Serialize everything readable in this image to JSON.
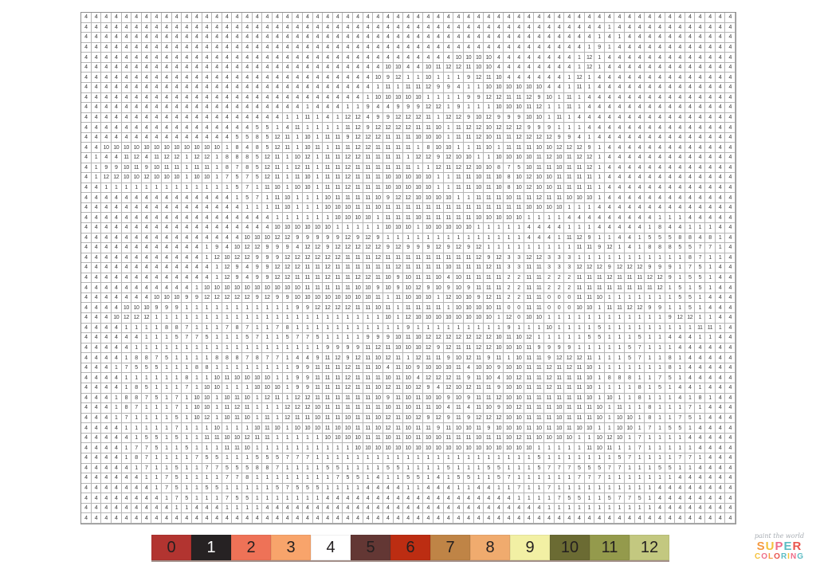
{
  "page": {
    "background": "#ffffff"
  },
  "grid": {
    "rows": 51,
    "cols": 65,
    "line_color": "#b6b6b6",
    "number_color": "#3c3c3c",
    "cell_values": [
      "4 4 4 4 4 4 4 4 4 4 4 4 4 4 4 4 4 4 4 4 4 4 4 4 4 4 4 4 4 4 4 4 4 4 4 4 4 4 4 4 4 4 4 4 4 4 4 4 4 4 4 4 4 4 4 4 4 4 4 4 4 4 4 4 4",
      "4 4 4 4 4 4 4 4 4 4 4 4 4 4 4 4 4 4 4 4 4 4 4 4 4 4 4 4 4 4 4 4 4 4 4 4 4 4 4 4 4 4 4 4 4 4 4 4 4 4 4 4 1 4 4 4 4 4 4 4 4 4 4 4 4",
      "4 4 4 4 4 4 4 4 4 4 4 4 4 4 4 4 4 4 4 4 4 4 4 4 4 4 4 4 4 4 4 4 4 4 4 4 4 4 4 4 4 4 4 4 4 4 4 4 4 4 4 1 4 1 4 4 4 4 4 4 4 4 4 4 4",
      "4 4 4 4 4 4 4 4 4 4 4 4 4 4 4 4 4 4 4 4 4 4 4 4 4 4 4 4 4 4 4 4 4 4 4 4 4 4 4 4 4 4 4 4 4 4 4 4 4 4 1 9 1 4 4 4 4 4 4 4 4 4 4 4 4",
      "4 4 4 4 4 4 4 4 4 4 4 4 4 4 4 4 4 4 4 4 4 4 4 4 4 4 4 4 4 4 4 4 4 4 4 4 4 10 10 10 10 4 4 4 4 4 4 4 4 1 12 1 4 4 4 4 4 4 4 4 4 4 4 4 4",
      "4 4 4 4 4 4 4 4 4 4 4 4 4 4 4 4 4 4 4 4 4 4 4 4 4 4 4 4 4 4 10 10 4 4 10 11 12 12 11 10 10 4 4 4 4 4 4 4 4 1 12 1 4 4 4 4 4 4 4 4 4 4 4 4 4",
      "4 4 4 4 4 4 4 4 4 4 4 4 4 4 4 4 4 4 4 4 4 4 4 4 4 4 4 4 4 10 9 12 1 1 10 1 1 1 9 12 11 10 4 4 4 4 4 4 1 12 1 4 4 4 4 4 4 4 4 4 4 4 4 4 4",
      "4 4 4 4 4 4 4 4 4 4 4 4 4 4 4 4 4 4 4 4 4 4 4 4 4 4 4 4 4 1 11 1 11 11 12 9 9 4 1 1 10 10 10 10 10 10 4 4 1 11 1 4 4 4 4 4 4 4 4 4 4 4 4 4 4",
      "4 4 4 4 4 4 4 4 4 4 4 4 4 4 4 4 4 4 4 4 4 4 4 4 4 4 4 4 1 10 10 10 10 10 1 1 1 1 9 9 12 12 11 11 12 9 10 1 11 1 4 4 4 4 4 4 4 4 4 4 4 4 4 4 4",
      "4 4 4 4 4 4 4 4 4 4 4 4 4 4 4 4 4 4 4 4 4 4 1 4 4 4 1 1 9 4 4 9 9 9 12 12 1 9 1 1 1 10 10 10 11 12 1 1 11 1 4 4 4 4 4 4 4 4 4 4 4 4 4 4 4",
      "4 4 4 4 4 4 4 4 4 4 4 4 4 4 4 4 4 4 4 4 1 1 11 1 4 1 12 12 4 9 9 12 12 12 11 1 12 12 9 10 12 9 9 9 10 10 1 11 1 4 4 4 4 4 4 4 4 4 4 4 4 4 4 4 4",
      "4 4 4 4 4 4 4 4 4 4 4 4 4 4 4 4 4 5 5 1 4 11 1 1 1 1 11 12 9 12 12 12 12 11 11 10 1 11 12 12 10 12 12 12 9 9 9 1 1 1 4 4 4 4 4 4 4 4 4 4 4 4 4 4 4",
      "4 4 4 4 4 4 4 4 4 4 4 4 4 4 4 5 5 8 5 12 11 1 10 1 11 11 9 12 12 12 11 11 11 10 10 10 1 11 11 12 10 11 11 12 12 12 12 9 9 4 1 4 4 4 4 4 4 4 4 4 4 4 4 4 4",
      "4 4 10 10 10 10 10 10 10 10 10 10 10 10 1 8 4 8 5 12 11 1 10 11 1 11 11 12 12 11 11 11 11 1 8 10 10 1 1 11 10 1 11 11 11 10 10 12 12 12 9 1 4 4 4 4 4 4 4 4 4 4 4 4 4",
      "4 1 4 4 11 12 4 11 12 12 1 12 12 1 8 8 8 5 12 11 1 10 12 1 11 11 12 12 11 11 11 11 1 12 12 9 12 10 10 1 1 10 10 10 10 11 12 10 11 12 12 1 4 4 4 4 4 4 4 4 4 4 4 4 4",
      "4 1 9 9 10 11 9 10 11 11 1 11 11 1 8 7 8 5 12 11 1 12 11 1 11 11 12 11 11 11 11 11 11 1 1 12 11 12 12 10 10 8 7 5 10 11 11 10 11 11 12 1 4 4 4 4 4 4 4 4 4 4 4 4 4",
      "4 1 12 12 10 10 12 10 10 10 1 10 10 1 7 5 7 5 12 11 1 11 10 1 11 11 12 11 11 11 10 10 10 10 10 1 1 11 11 10 11 10 8 10 12 10 10 11 11 11 11 1 4 4 4 4 4 4 4 4 4 4 4 4 4",
      "4 4 1 1 1 1 1 1 1 1 1 1 1 1 1 5 7 1 11 10 1 10 10 1 11 11 12 11 11 11 10 10 10 10 10 1 1 11 11 10 11 10 8 10 12 10 10 11 11 11 11 1 4 4 4 4 4 4 4 4 4 4 4 4 4",
      "4 4 4 4 4 4 4 4 4 4 4 4 4 4 4 1 5 7 1 11 10 1 1 1 10 11 11 11 11 10 9 12 12 10 10 10 10 1 1 11 11 11 10 11 11 12 11 11 10 10 10 1 4 4 4 4 4 4 4 4 4 4 4 4 4",
      "4 4 4 4 4 4 4 4 4 4 4 4 4 4 4 4 1 1 1 11 10 1 1 1 10 10 10 11 11 10 11 11 11 11 11 11 11 11 11 11 11 11 11 11 10 10 10 10 1 1 1 4 4 4 4 4 4 4 4 4 4 4 4 4 4",
      "4 4 4 4 4 4 4 4 4 4 4 4 4 4 4 4 4 4 4 1 1 1 1 1 1 10 10 10 10 1 11 11 11 10 11 11 11 11 11 10 10 10 10 10 1 1 1 1 4 4 4 4 4 4 4 4 4 1 1 1 4 4 4 4 4",
      "4 4 4 4 4 4 4 4 4 4 4 4 4 4 4 4 4 4 4 10 10 10 10 10 10 1 1 1 1 1 10 10 10 1 10 10 10 10 10 1 1 1 1 1 4 4 4 4 1 1 1 4 4 4 4 4 1 8 4 4 1 1 1 4 4",
      "4 4 4 4 4 4 4 4 4 4 4 4 4 4 4 4 10 10 10 12 12 9 9 9 9 9 12 9 12 9 1 1 1 1 1 1 1 1 1 1 1 1 1 1 4 4 4 1 11 12 9 1 1 4 4 1 5 5 5 8 8 4 8 1 4",
      "4 4 4 4 4 4 4 4 4 4 4 4 1 9 4 10 12 12 9 9 9 4 12 12 9 12 12 12 12 12 9 12 9 9 9 12 9 12 9 12 1 1 1 1 1 1 1 1 1 11 11 9 12 1 4 1 8 8 8 5 5 7 7 1 4",
      "4 4 4 4 4 4 4 4 4 4 4 4 1 12 10 12 12 9 9 9 12 12 12 12 12 12 11 11 11 12 11 11 11 11 11 11 11 11 11 12 9 12 3 3 12 12 3 3 3 1 1 1 1 1 1 1 1 1 1 1 8 7 1 1 4",
      "4 4 4 4 4 4 4 4 4 4 4 4 4 1 12 9 4 9 9 12 12 12 11 11 12 11 11 11 11 11 11 12 11 11 11 11 10 11 11 11 12 11 3 3 11 11 3 3 3 12 12 12 9 12 12 12 9 9 9 1 7 5 1 4 4",
      "4 4 4 4 4 4 4 4 4 4 4 4 4 1 12 9 4 9 9 12 12 11 11 11 12 11 11 12 12 11 10 9 10 11 11 10 4 10 11 11 11 11 2 2 11 11 2 2 2 11 11 11 12 11 11 11 12 12 9 1 5 5 1 4 4",
      "4 4 4 4 4 4 4 4 4 4 4 1 10 10 10 10 10 10 10 10 10 10 11 11 11 11 11 10 10 9 10 9 10 12 9 10 9 10 9 11 11 11 2 2 11 11 2 2 2 11 11 11 11 11 11 11 11 12 1 5 1 5 1 4 4",
      "4 4 4 4 4 4 4 10 10 10 9 9 12 12 12 12 12 9 12 9 9 10 10 10 10 10 10 10 10 11 1 11 10 10 10 1 12 10 10 9 12 11 2 2 11 11 0 0 0 11 11 10 1 1 1 1 1 1 1 5 5 1 4 4 4",
      "4 4 4 4 10 10 10 9 9 9 1 1 1 1 1 1 1 1 1 1 1 9 9 12 12 12 12 11 11 10 11 1 11 11 11 11 1 10 10 10 10 11 0 0 11 11 0 0 0 10 10 1 11 11 12 12 9 9 1 1 5 1 4 4 4",
      "4 4 4 10 12 12 12 1 1 1 1 1 1 1 1 1 1 1 1 1 1 1 1 1 1 1 1 1 1 1 10 1 12 10 10 10 10 10 10 10 10 1 12 0 10 10 1 1 1 1 1 1 1 1 1 1 1 1 9 12 12 1 1 4 4",
      "4 4 4 4 1 1 1 1 8 8 7 1 1 1 7 8 7 1 1 7 8 1 1 1 1 1 1 1 1 1 1 1 9 1 1 1 1 1 1 1 1 1 9 1 1 1 10 1 1 1 1 5 1 1 1 1 1 1 1 1 1 11 11 1 4",
      "4 4 4 4 4 4 1 1 1 5 7 7 5 1 1 1 5 7 1 1 5 7 7 5 1 1 1 1 9 9 9 10 11 10 12 12 12 12 12 12 12 10 11 10 12 1 1 1 1 1 5 5 1 1 1 5 1 1 4 4 4 1 1 4 4",
      "4 4 4 4 4 1 1 1 1 1 1 1 1 1 1 1 1 1 1 1 1 1 1 1 9 9 9 9 11 12 11 10 10 10 12 9 12 11 11 12 12 10 10 10 11 9 9 9 9 1 1 1 1 1 5 7 1 1 1 4 4 4 4 4 4",
      "4 4 4 4 1 8 8 7 5 1 1 1 1 8 8 8 7 8 7 7 1 4 4 9 11 12 9 12 11 10 12 11 1 12 11 11 9 10 12 11 9 11 1 10 11 11 9 12 12 12 11 1 1 1 5 7 1 1 8 1 4 4 4 4 4",
      "4 4 4 1 7 5 5 5 1 1 1 8 8 1 1 1 1 1 1 1 1 9 9 11 11 11 12 11 11 10 4 11 10 9 10 10 10 11 4 10 10 9 10 10 11 11 12 11 12 11 10 1 1 1 1 1 1 1 8 1 4 4 4 4 4",
      "4 4 4 4 1 1 1 1 1 1 8 1 1 10 11 10 10 10 10 1 1 9 9 11 11 11 12 11 11 11 10 11 10 4 12 12 12 11 9 11 10 4 10 12 11 11 12 11 11 11 10 1 8 8 8 1 1 7 5 1 4 4 4 4 4",
      "4 4 4 4 1 8 5 1 1 1 7 1 10 10 1 1 1 10 10 10 1 9 9 11 11 11 12 11 11 10 12 11 10 12 9 4 12 10 12 11 11 9 10 10 11 11 12 11 11 11 10 1 1 1 1 8 1 5 1 4 4 1 4 4 4",
      "4 4 4 1 8 8 7 5 1 7 1 10 10 1 10 11 10 1 12 11 1 12 12 11 11 11 11 11 11 10 9 11 10 11 10 10 9 10 9 11 11 12 10 10 11 11 11 11 11 11 10 1 10 1 1 8 1 1 1 4 1 8 1 4 4",
      "4 4 4 1 8 7 1 1 1 7 1 10 10 1 11 12 11 1 1 1 12 12 12 10 11 11 11 11 11 11 10 11 10 11 11 10 4 11 4 11 10 9 10 12 11 11 11 10 11 11 11 10 1 11 1 1 8 1 1 1 7 1 4 4 4",
      "4 4 4 1 7 1 1 1 1 5 1 10 12 1 10 11 10 1 11 1 12 11 11 10 11 11 10 11 11 10 12 11 10 12 9 12 9 11 9 12 12 12 10 10 11 11 11 10 11 11 11 10 1 10 10 1 8 1 1 7 5 1 4 4 4",
      "4 4 4 4 1 1 1 1 1 7 1 1 1 10 1 1 1 10 11 10 1 10 10 10 11 10 10 11 11 10 12 11 10 11 11 9 11 10 10 11 9 10 10 10 11 10 11 10 11 10 10 1 1 10 10 1 7 1 5 5 1 4 4 4 4",
      "4 4 4 4 4 1 5 5 1 5 1 1 11 11 10 10 12 11 11 1 1 1 1 1 10 10 10 10 11 11 10 11 10 11 10 10 11 11 11 10 11 11 10 12 11 10 10 10 10 1 1 10 12 10 1 7 1 1 1 1 4 4 4 4 4",
      "4 4 4 4 1 7 7 5 1 1 5 1 1 1 11 11 10 1 1 1 1 1 1 1 1 1 1 10 10 10 10 10 10 10 10 10 10 10 10 10 10 10 10 10 10 1 1 1 1 1 11 10 11 1 1 7 1 1 1 1 1 4 4 4 4",
      "4 4 4 4 1 8 7 1 1 1 1 7 5 5 1 1 1 5 5 5 7 7 7 1 1 1 1 1 1 1 1 1 1 1 1 1 1 1 1 1 1 1 1 1 1 5 1 1 1 1 1 1 1 5 7 1 1 1 1 7 7 1 4 4 4",
      "4 4 4 4 4 1 7 1 1 5 1 1 7 7 5 5 5 8 8 7 1 1 1 1 5 5 1 1 1 1 5 5 1 1 1 1 5 1 1 1 5 5 1 1 1 5 7 7 7 5 5 5 7 7 1 1 1 5 5 1 1 4 4 4 4",
      "4 4 4 4 4 4 1 1 7 5 1 1 1 1 7 7 8 1 1 1 1 1 1 1 1 7 5 5 1 4 1 1 5 5 1 4 1 5 5 1 1 5 7 1 1 1 1 1 1 7 7 7 1 1 1 1 1 1 1 4 4 4 4 4 4",
      "4 4 4 4 4 4 4 1 7 5 1 1 5 5 1 1 1 1 1 5 7 5 5 5 1 1 1 1 4 4 4 4 1 1 4 4 4 1 1 4 4 1 1 7 1 1 7 1 1 1 1 1 1 1 1 1 1 4 4 4 4 4 4 4 4",
      "4 4 4 4 4 4 4 4 1 7 5 1 1 1 7 5 5 1 1 1 1 1 1 1 4 4 4 4 4 4 4 4 4 4 4 4 4 4 4 4 4 4 4 1 1 1 1 7 5 5 1 1 5 7 7 5 1 4 4 4 4 4 4 4 4",
      "4 4 4 4 4 4 4 4 4 1 1 4 4 4 1 1 1 1 4 4 4 4 4 4 4 4 4 4 4 4 4 4 4 4 4 4 4 4 4 4 4 4 4 4 4 4 1 1 1 1 1 1 1 1 1 1 1 4 4 4 4 4 4 4 4",
      "4 4 4 4 4 4 4 4 4 4 4 4 4 4 4 4 4 4 4 4 4 4 4 4 4 4 4 4 4 4 4 4 4 4 4 4 4 4 4 4 4 4 4 4 4 4 4 4 4 4 4 4 4 4 4 4 4 4 4 4 4 4 4 4 4"
    ]
  },
  "legend": {
    "items": [
      {
        "number": "0",
        "color": "#b23430",
        "text_color": "#231f20"
      },
      {
        "number": "1",
        "color": "#262223",
        "text_color": "#ffffff"
      },
      {
        "number": "2",
        "color": "#ee7257",
        "text_color": "#231f20"
      },
      {
        "number": "3",
        "color": "#f8a46b",
        "text_color": "#231f20"
      },
      {
        "number": "4",
        "color": "#ffffff",
        "text_color": "#231f20"
      },
      {
        "number": "5",
        "color": "#633734",
        "text_color": "#231f20"
      },
      {
        "number": "6",
        "color": "#bc2d12",
        "text_color": "#231f20"
      },
      {
        "number": "7",
        "color": "#bf8446",
        "text_color": "#231f20"
      },
      {
        "number": "8",
        "color": "#f0ab6e",
        "text_color": "#231f20"
      },
      {
        "number": "9",
        "color": "#f2f0a4",
        "text_color": "#231f20"
      },
      {
        "number": "10",
        "color": "#6b6b33",
        "text_color": "#231f20"
      },
      {
        "number": "11",
        "color": "#949a4c",
        "text_color": "#231f20"
      },
      {
        "number": "12",
        "color": "#c3c880",
        "text_color": "#231f20"
      }
    ]
  },
  "watermark": {
    "tagline": "paint the world",
    "title": "SUPER",
    "subtitle": "COLORING",
    "title_letter_colors": [
      "#f59a41",
      "#f4c23c",
      "#ee6d8a",
      "#5bbcc3",
      "#e9564e"
    ],
    "subtitle_letter_colors": [
      "#f4c23c",
      "#ee6d8a",
      "#f59a41",
      "#e9564e",
      "#5bbcc3",
      "#f4c23c",
      "#ee6d8a",
      "#5bbcc3"
    ]
  }
}
